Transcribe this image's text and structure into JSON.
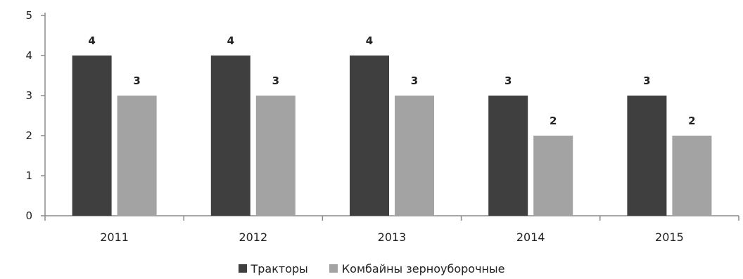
{
  "chart_data": {
    "type": "bar",
    "categories": [
      "2011",
      "2012",
      "2013",
      "2014",
      "2015"
    ],
    "series": [
      {
        "name": "Тракторы",
        "values": [
          4,
          4,
          4,
          3,
          3
        ],
        "color": "#3f3f3f"
      },
      {
        "name": "Комбайны зерноуборочные",
        "values": [
          3,
          3,
          3,
          2,
          2
        ],
        "color": "#a3a3a3"
      }
    ],
    "yticks": [
      "0",
      "1",
      "2",
      "3",
      "4",
      "5"
    ],
    "ylim": [
      0,
      5
    ],
    "grid": false,
    "data_labels": true,
    "legend_position": "bottom"
  }
}
